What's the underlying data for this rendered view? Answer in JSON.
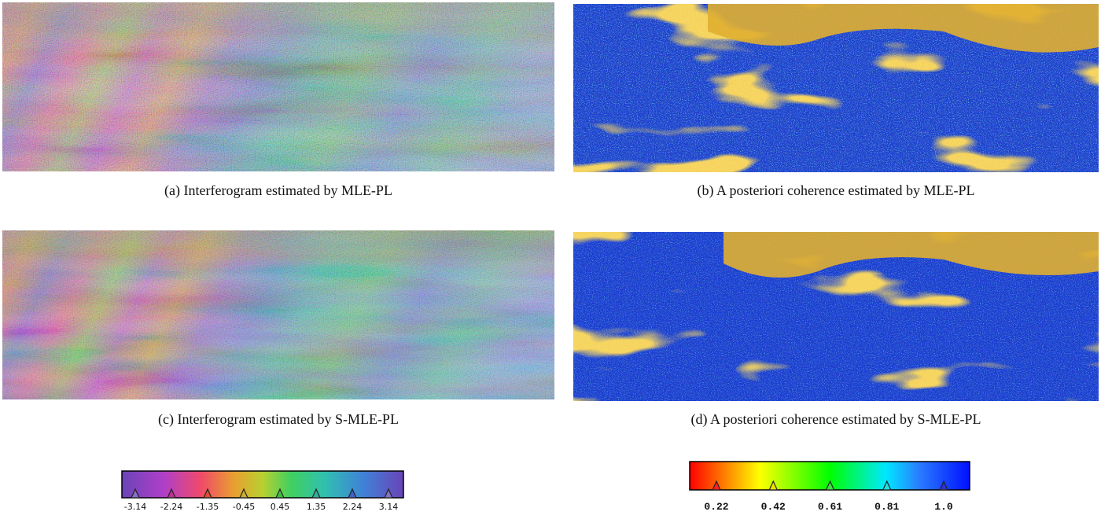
{
  "panels": [
    {
      "caption": "(a) Interferogram estimated by MLE-PL"
    },
    {
      "caption": "(b) A posteriori coherence estimated by MLE-PL"
    },
    {
      "caption": "(c) Interferogram estimated by S-MLE-PL"
    },
    {
      "caption": "(d) A posteriori coherence estimated by S-MLE-PL"
    }
  ],
  "colorbars": [
    {
      "ticks": [
        "-3.14",
        "-2.24",
        "-1.35",
        "-0.45",
        "0.45",
        "1.35",
        "2.24",
        "3.14"
      ]
    },
    {
      "ticks": [
        "0.22",
        "0.42",
        "0.61",
        "0.81",
        "1.0"
      ]
    }
  ]
}
